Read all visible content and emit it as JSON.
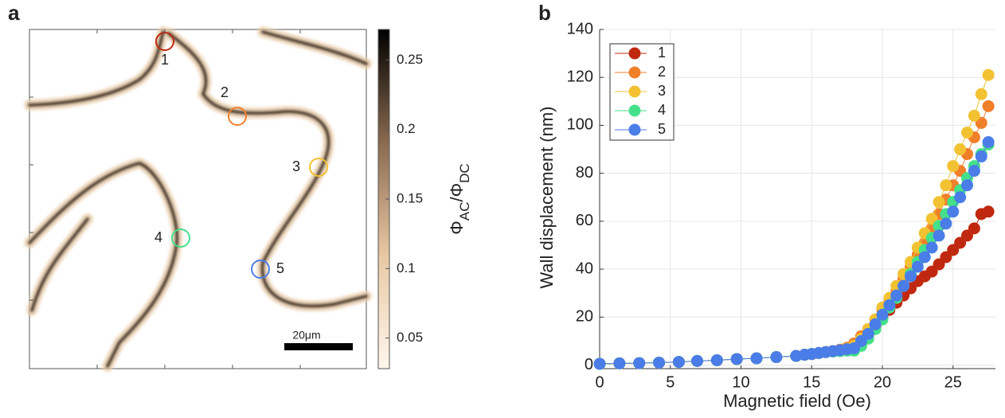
{
  "chart_data": [
    {
      "type": "heatmap",
      "panel_label": "a",
      "colorbar": {
        "clim": [
          0.028,
          0.272
        ],
        "ticks": [
          0.05,
          0.1,
          0.15,
          0.2,
          0.25
        ],
        "label_parts": [
          "Φ",
          "AC",
          "/Φ",
          "DC"
        ],
        "colors": [
          "#fff6ec",
          "#e8c8a4",
          "#8a6a50",
          "#000000"
        ]
      },
      "markers": [
        {
          "label": "1",
          "color": "#c0290f"
        },
        {
          "label": "2",
          "color": "#f07f2a"
        },
        {
          "label": "3",
          "color": "#f2c232"
        },
        {
          "label": "4",
          "color": "#44e08a"
        },
        {
          "label": "5",
          "color": "#4a7de8"
        }
      ],
      "scale_bar": "20μm"
    },
    {
      "type": "scatter",
      "panel_label": "b",
      "xlabel": "Magnetic field (Oe)",
      "ylabel": "Wall displacement (nm)",
      "xlim": [
        0,
        28
      ],
      "ylim": [
        -1.5,
        140
      ],
      "xticks": [
        0,
        5,
        10,
        15,
        20,
        25
      ],
      "yticks": [
        0,
        20,
        40,
        60,
        80,
        100,
        120,
        140
      ],
      "grid": true,
      "x": [
        0,
        1.4,
        2.8,
        4.2,
        5.6,
        6.9,
        8.3,
        9.7,
        11.1,
        12.5,
        13.9,
        14.5,
        15,
        15.5,
        16,
        16.5,
        17,
        17.5,
        18,
        18.5,
        19,
        19.5,
        20,
        20.5,
        21,
        21.5,
        22,
        22.5,
        23,
        23.5,
        24,
        24.5,
        25,
        25.5,
        26,
        26.5,
        27,
        27.5
      ],
      "series": [
        {
          "name": "1",
          "color": "#c0290f",
          "values": [
            0.5,
            0.7,
            0.8,
            1,
            1.3,
            1.7,
            2,
            2.5,
            2.8,
            3.3,
            3.8,
            4.3,
            4.6,
            5,
            5.4,
            5.8,
            6.2,
            6.8,
            8,
            10,
            13,
            16,
            20,
            23,
            26,
            29,
            32,
            35,
            37,
            39,
            42,
            45,
            48,
            51,
            54,
            57,
            63,
            64
          ]
        },
        {
          "name": "2",
          "color": "#f07f2a",
          "values": [
            0.5,
            0.7,
            0.8,
            1,
            1.3,
            1.7,
            2,
            2.5,
            2.8,
            3.3,
            3.8,
            4.3,
            4.6,
            5,
            5.4,
            5.8,
            6.4,
            7.2,
            9,
            12,
            15,
            19,
            23,
            27,
            31,
            36,
            41,
            46,
            51,
            57,
            63,
            69,
            75,
            81,
            88,
            95,
            101,
            108
          ]
        },
        {
          "name": "3",
          "color": "#f2c232",
          "values": [
            0.5,
            0.7,
            0.8,
            1,
            1.3,
            1.7,
            2,
            2.5,
            2.8,
            3.3,
            3.8,
            4.3,
            4.6,
            5,
            5.4,
            5.8,
            6.2,
            6.8,
            8,
            11,
            15,
            19,
            24,
            28,
            33,
            38,
            43,
            49,
            55,
            61,
            68,
            75,
            83,
            90,
            97,
            104,
            113,
            121
          ]
        },
        {
          "name": "4",
          "color": "#44e08a",
          "values": [
            0.5,
            0.7,
            0.8,
            1,
            1.3,
            1.7,
            2,
            2.5,
            2.8,
            3.3,
            3.8,
            4.3,
            4.6,
            5,
            5.4,
            5.6,
            5.8,
            6,
            6,
            8,
            11,
            15,
            19,
            24,
            28,
            33,
            38,
            43,
            48,
            53,
            58,
            63,
            68,
            73,
            78,
            83,
            88,
            92
          ]
        },
        {
          "name": "5",
          "color": "#4a7de8",
          "values": [
            0.5,
            0.7,
            0.8,
            1,
            1.3,
            1.7,
            2,
            2.5,
            2.8,
            3.3,
            3.8,
            4.3,
            4.6,
            5,
            5.4,
            5.8,
            6.2,
            6.6,
            7,
            10,
            13,
            17,
            21,
            25,
            29,
            33,
            37,
            41,
            45,
            49,
            54,
            59,
            64,
            70,
            75,
            81,
            87,
            93
          ]
        }
      ]
    }
  ]
}
